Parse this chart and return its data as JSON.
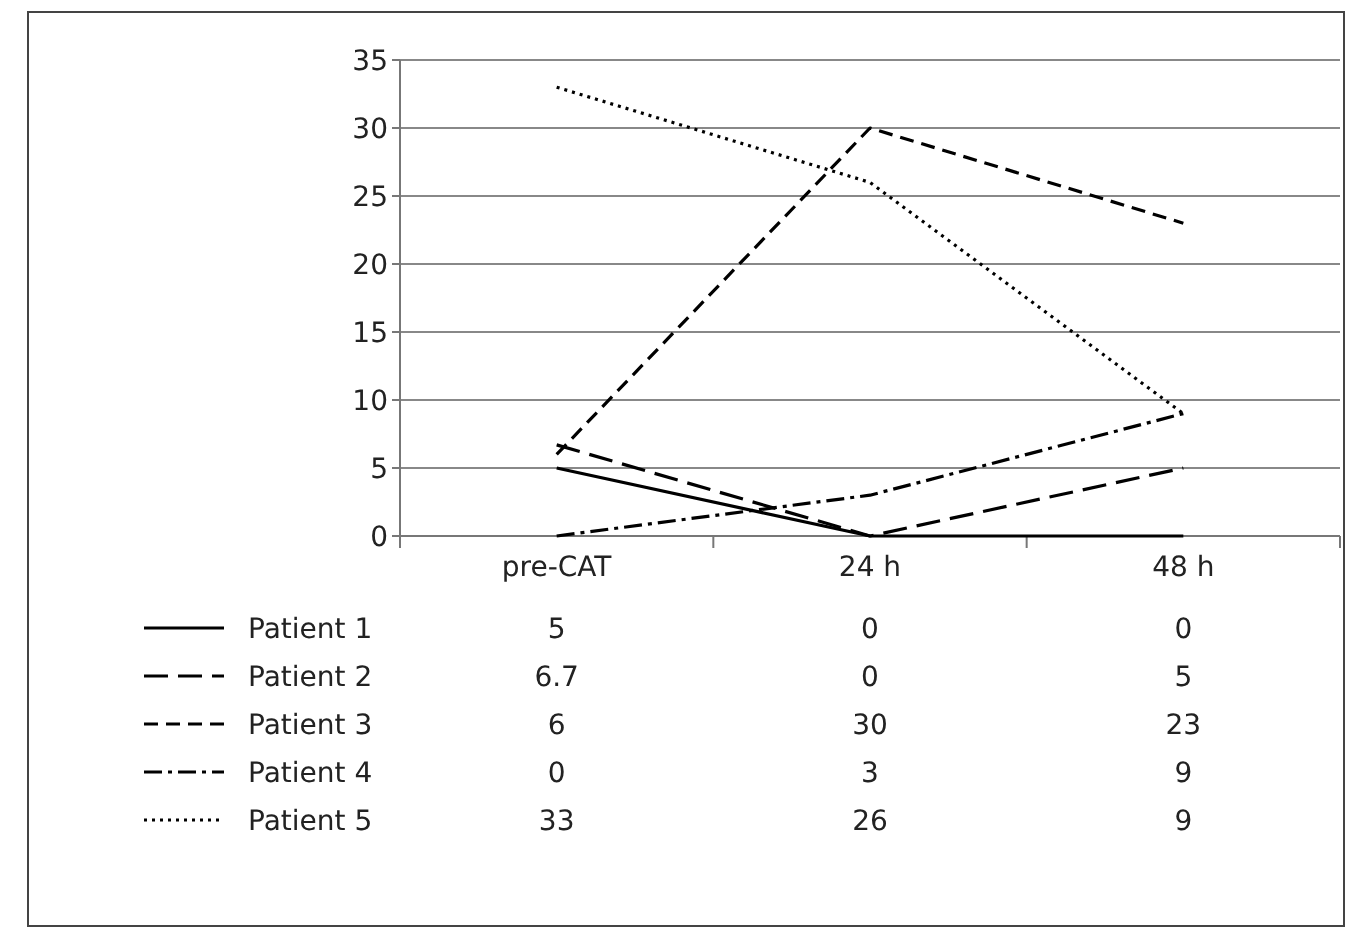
{
  "chart_data": {
    "type": "line",
    "categories": [
      "pre-CAT",
      "24 h",
      "48 h"
    ],
    "series": [
      {
        "name": "Patient 1",
        "color": "#000000",
        "line_style": "solid",
        "values": [
          5,
          0,
          0
        ]
      },
      {
        "name": "Patient 2",
        "color": "#000000",
        "line_style": "longdash",
        "values": [
          6.7,
          0,
          5
        ]
      },
      {
        "name": "Patient 3",
        "color": "#000000",
        "line_style": "dashed",
        "values": [
          6,
          30,
          23
        ]
      },
      {
        "name": "Patient 4",
        "color": "#000000",
        "line_style": "dashdot",
        "values": [
          0,
          3,
          9
        ]
      },
      {
        "name": "Patient 5",
        "color": "#000000",
        "line_style": "dotted",
        "values": [
          33,
          26,
          9
        ]
      }
    ],
    "ylim": [
      0,
      35
    ],
    "yticks": [
      0,
      5,
      10,
      15,
      20,
      25,
      30,
      35
    ],
    "grid": "y",
    "legend": "bottom",
    "data_labels": true,
    "marker": "none"
  }
}
